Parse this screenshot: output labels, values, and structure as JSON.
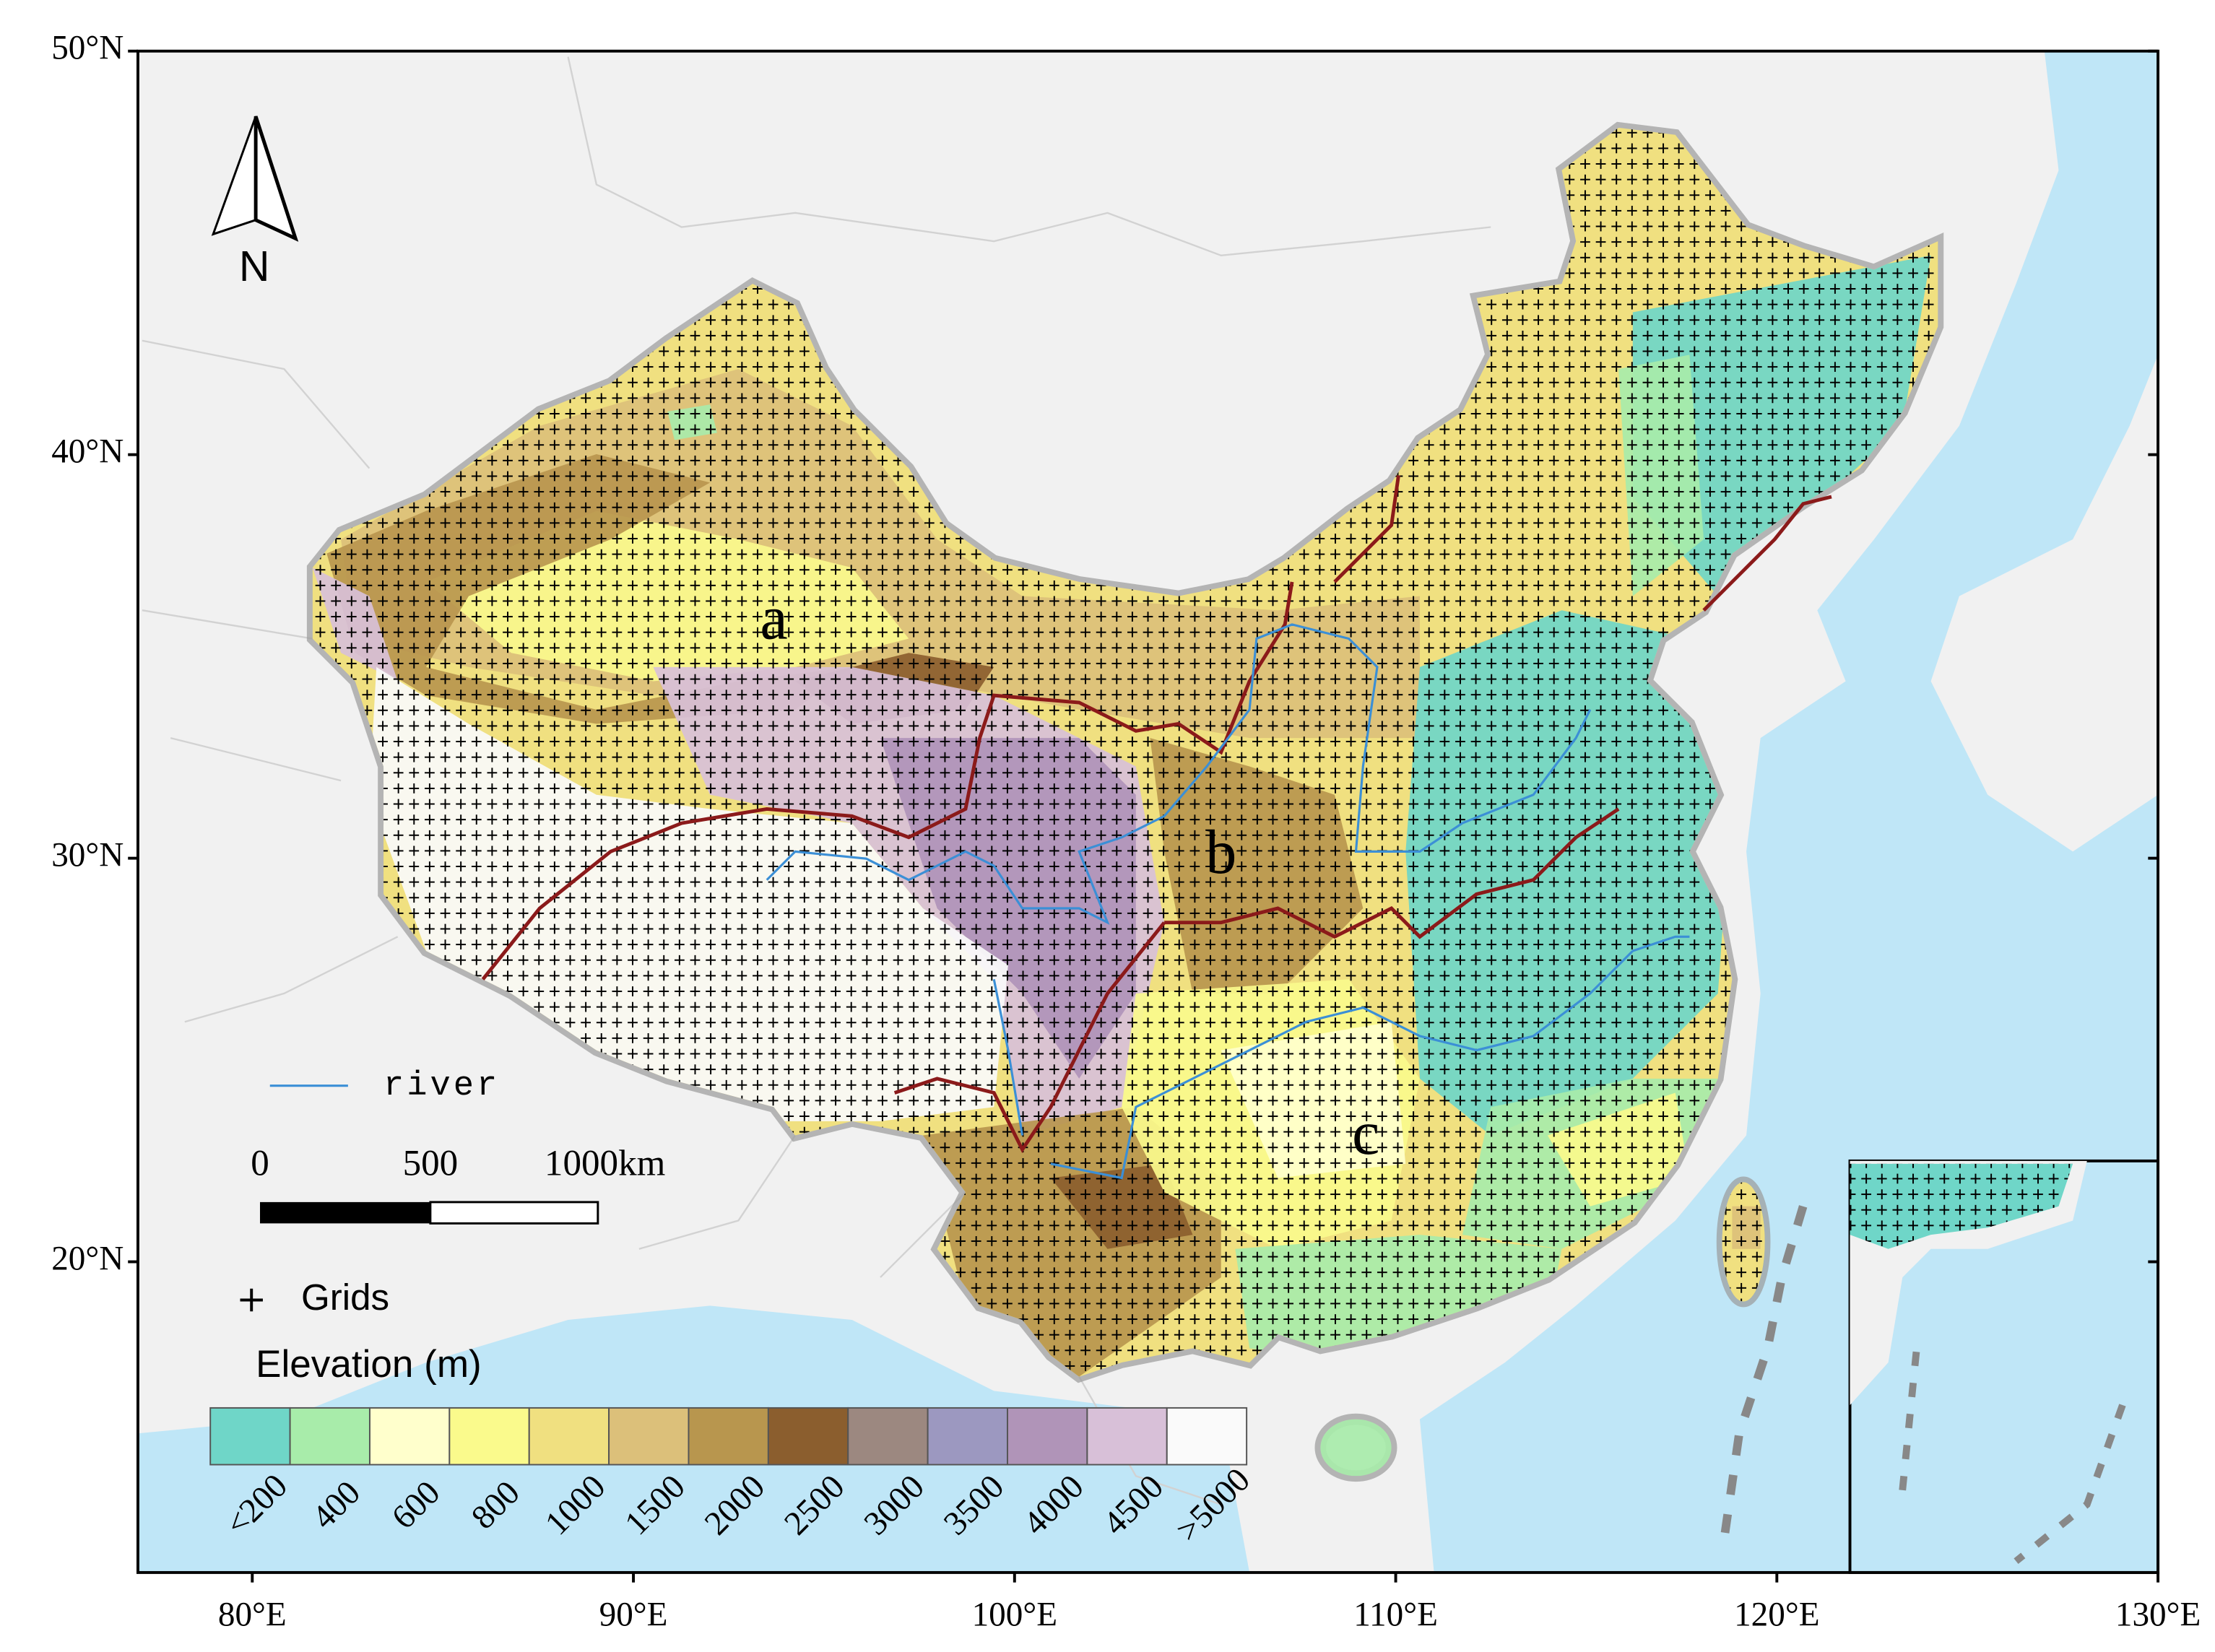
{
  "map": {
    "xlim": [
      77,
      130
    ],
    "ylim": [
      12.3,
      50
    ],
    "xticks": [
      {
        "value": 80,
        "label": "80°E"
      },
      {
        "value": 90,
        "label": "90°E"
      },
      {
        "value": 100,
        "label": "100°E"
      },
      {
        "value": 110,
        "label": "110°E"
      },
      {
        "value": 120,
        "label": "120°E"
      },
      {
        "value": 130,
        "label": "130°E"
      }
    ],
    "yticks": [
      {
        "value": 50,
        "label": "50°N"
      },
      {
        "value": 40,
        "label": "40°N"
      },
      {
        "value": 30,
        "label": "30°N"
      },
      {
        "value": 20,
        "label": "20°N"
      }
    ],
    "north_label": "N",
    "region_labels": [
      "a",
      "b",
      "c"
    ],
    "river_label": "river",
    "scale_bar": [
      "0",
      "500",
      "1000km"
    ],
    "grids_label": "Grids",
    "legend": {
      "title": "Elevation (m)",
      "items": [
        {
          "label": "<200",
          "color": "#6fd6c8"
        },
        {
          "label": "400",
          "color": "#a8ecaa"
        },
        {
          "label": "600",
          "color": "#ffffcc"
        },
        {
          "label": "800",
          "color": "#fafa8c"
        },
        {
          "label": "1000",
          "color": "#f0e080"
        },
        {
          "label": "1500",
          "color": "#dcc07a"
        },
        {
          "label": "2000",
          "color": "#b8964e"
        },
        {
          "label": "2500",
          "color": "#8b5e2e"
        },
        {
          "label": "3000",
          "color": "#9c8880"
        },
        {
          "label": "3500",
          "color": "#9c98c0"
        },
        {
          "label": "4000",
          "color": "#b094b8"
        },
        {
          "label": "4500",
          "color": "#d8c0d8"
        },
        {
          "label": ">5000",
          "color": "#fafafa"
        }
      ]
    }
  }
}
